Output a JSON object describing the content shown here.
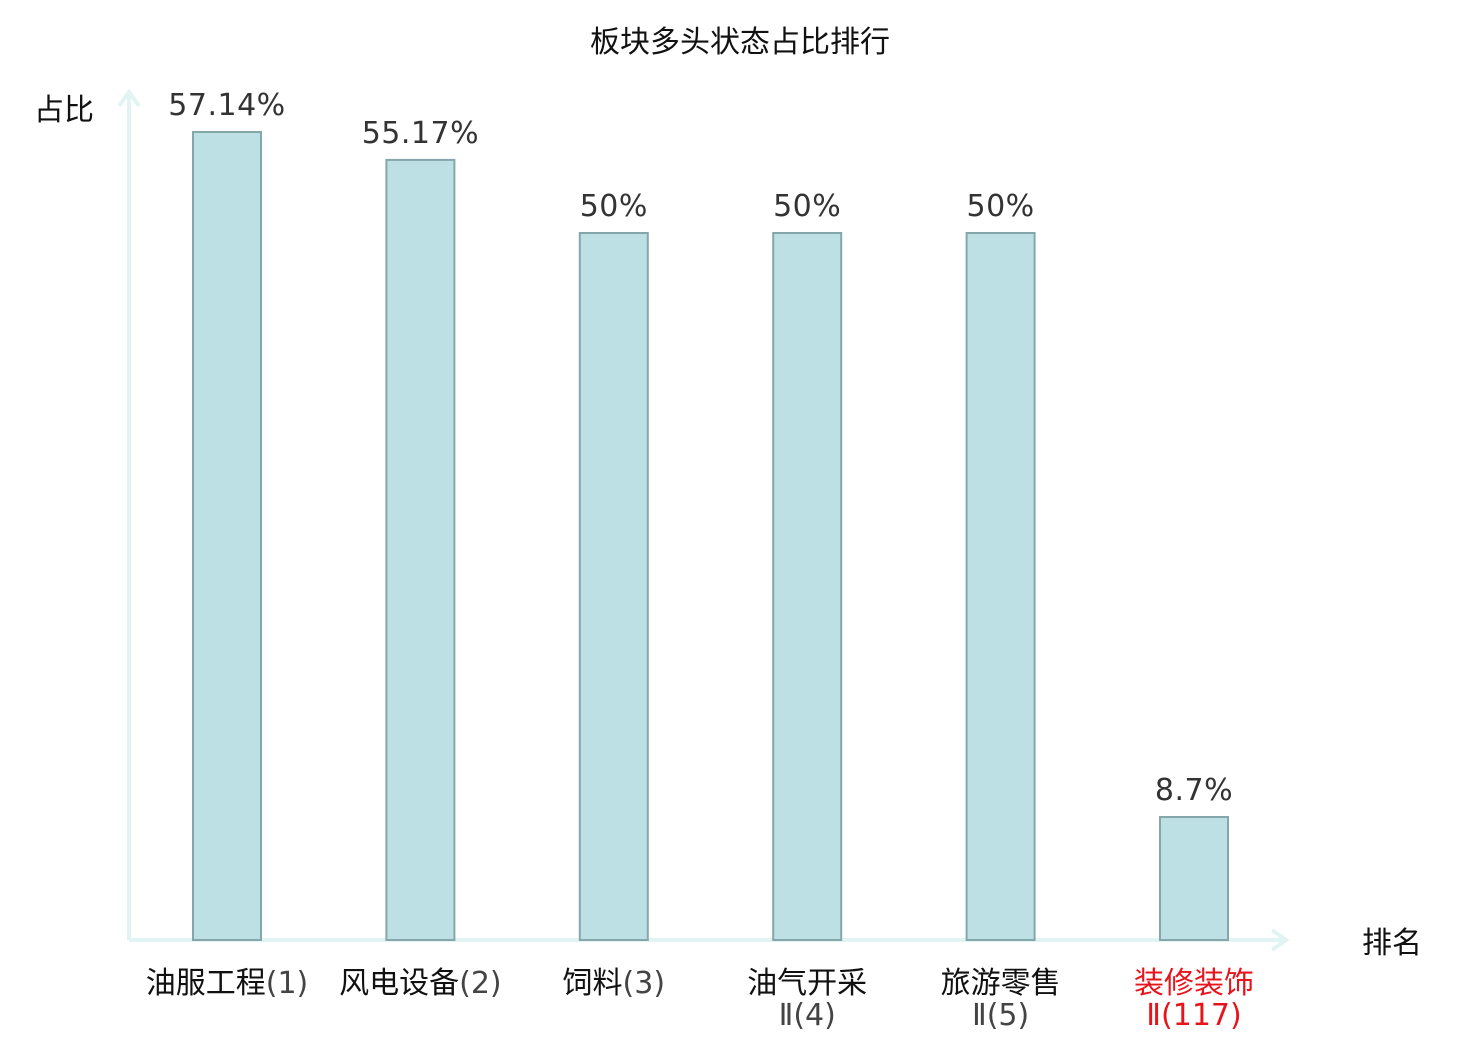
{
  "chart_data": {
    "type": "bar",
    "title": "板块多头状态占比排行",
    "ylabel": "占比",
    "xlabel": "排名",
    "ylim": [
      0,
      62
    ],
    "grid": false,
    "legend": "none",
    "categories": [
      {
        "name": "油服工程",
        "rank": "(1)",
        "highlight": false
      },
      {
        "name": "风电设备",
        "rank": "(2)",
        "highlight": false
      },
      {
        "name": "饲料",
        "rank": "(3)",
        "highlight": false
      },
      {
        "name": "油气开采",
        "rank": "Ⅱ(4)",
        "highlight": false
      },
      {
        "name": "旅游零售",
        "rank": "Ⅱ(5)",
        "highlight": false
      },
      {
        "name": "装修装饰",
        "rank": "Ⅱ(117)",
        "highlight": true
      }
    ],
    "values": [
      57.14,
      55.17,
      50,
      50,
      50,
      8.7
    ],
    "value_labels": [
      "57.14%",
      "55.17%",
      "50%",
      "50%",
      "50%",
      "8.7%"
    ],
    "colors": {
      "bar_fill": "#bce0e3",
      "bar_stroke": "#86a7aa",
      "axis": "#e2f3f3",
      "label_text": "#333333",
      "category_text": "#111111",
      "rank_text": "#444444",
      "highlight": "#e8141b"
    }
  }
}
